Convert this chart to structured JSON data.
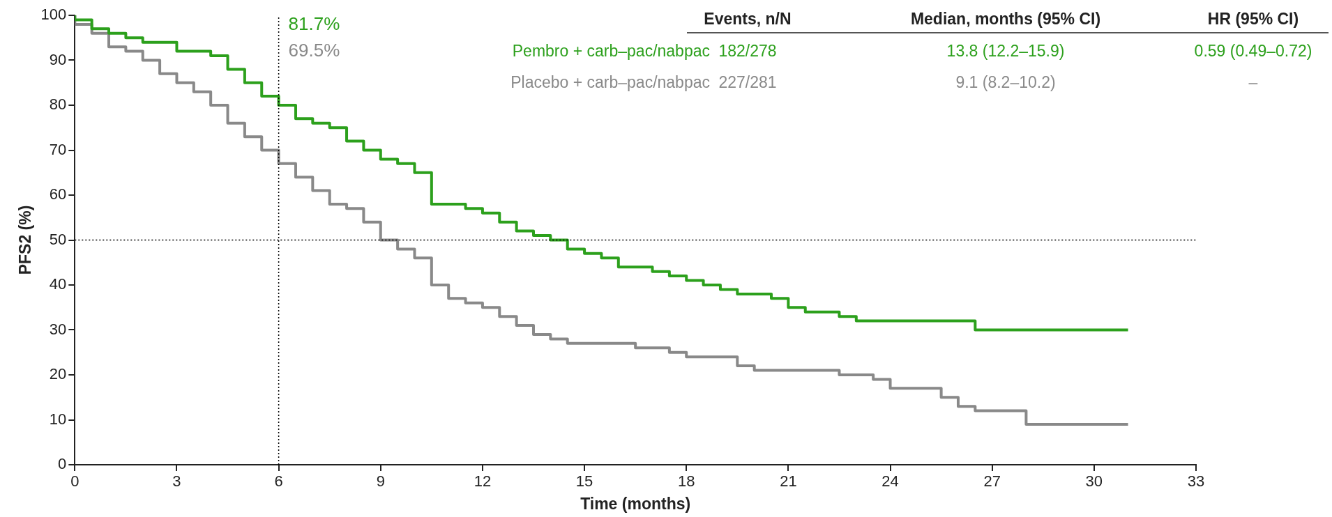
{
  "chart_data": {
    "type": "step",
    "xlabel": "Time (months)",
    "ylabel": "PFS2 (%)",
    "xlim": [
      0,
      33
    ],
    "xticks": [
      0,
      3,
      6,
      9,
      12,
      15,
      18,
      21,
      24,
      27,
      30,
      33
    ],
    "ylim": [
      0,
      100
    ],
    "yticks": [
      0,
      10,
      20,
      30,
      40,
      50,
      60,
      70,
      80,
      90,
      100
    ],
    "grid": false,
    "legend": "top right",
    "marker": "none",
    "line_style": "solid",
    "series": [
      {
        "name": "Pembro + carb–pac/nabpac",
        "color": "#2ca01c",
        "x": [
          0,
          0.5,
          1,
          1.5,
          2,
          3,
          4,
          4.5,
          5,
          5.5,
          6,
          6.5,
          7,
          7.5,
          8,
          8.5,
          9,
          9.5,
          10,
          10.5,
          11,
          11.5,
          12,
          12.5,
          13,
          13.5,
          14,
          14.5,
          15,
          15.5,
          16,
          16.5,
          17,
          17.5,
          18,
          18.5,
          19,
          19.5,
          20,
          20.5,
          21,
          21.5,
          22,
          22.5,
          23,
          23.5,
          24,
          26.5,
          26.6,
          31
        ],
        "values": [
          100,
          99,
          97,
          96,
          95,
          94,
          92,
          91,
          88,
          85,
          82,
          80,
          77,
          76,
          75,
          72,
          70,
          68,
          67,
          65,
          58,
          58,
          57,
          56,
          54,
          52,
          51,
          50,
          48,
          47,
          46,
          44,
          44,
          43,
          42,
          41,
          40,
          39,
          38,
          38,
          37,
          35,
          34,
          34,
          33,
          32,
          32,
          32,
          30,
          30
        ]
      },
      {
        "name": "Placebo + carb–pac/nabpac",
        "color": "#898989",
        "x": [
          0,
          0.5,
          1,
          1.5,
          2,
          2.5,
          3,
          3.5,
          4,
          4.5,
          5,
          5.5,
          6,
          6.5,
          7,
          7.5,
          8,
          8.5,
          9,
          9.5,
          10,
          10.5,
          11,
          11.5,
          12,
          12.5,
          13,
          13.5,
          14,
          14.5,
          15,
          16,
          16.5,
          17,
          17.5,
          18,
          19,
          19.5,
          20,
          20.5,
          21,
          22.5,
          23,
          23.5,
          24,
          25,
          25.5,
          26,
          26.5,
          27,
          28,
          29.5,
          31
        ],
        "values": [
          100,
          98,
          96,
          93,
          92,
          90,
          87,
          85,
          83,
          80,
          76,
          73,
          70,
          67,
          64,
          61,
          58,
          57,
          54,
          50,
          48,
          46,
          40,
          37,
          36,
          35,
          33,
          31,
          29,
          28,
          27,
          27,
          27,
          26,
          26,
          25,
          24,
          24,
          22,
          21,
          21,
          21,
          20,
          20,
          19,
          17,
          17,
          15,
          13,
          12,
          12,
          9,
          9
        ]
      }
    ],
    "ref_lines": [
      {
        "axis": "x",
        "value": 6,
        "line_style": "dotted",
        "color": "#000000"
      },
      {
        "axis": "y",
        "value": 50,
        "line_style": "dotted",
        "color": "#000000"
      }
    ],
    "annotations": [
      "81.7%",
      "69.5%",
      "Events, n/N",
      "Median, months (95% CI)",
      "HR (95% CI)",
      "182/278",
      "13.8 (12.2–15.9)",
      "0.59 (0.49–0.72)",
      "227/281",
      "9.1 (8.2–10.2)",
      "–"
    ]
  }
}
